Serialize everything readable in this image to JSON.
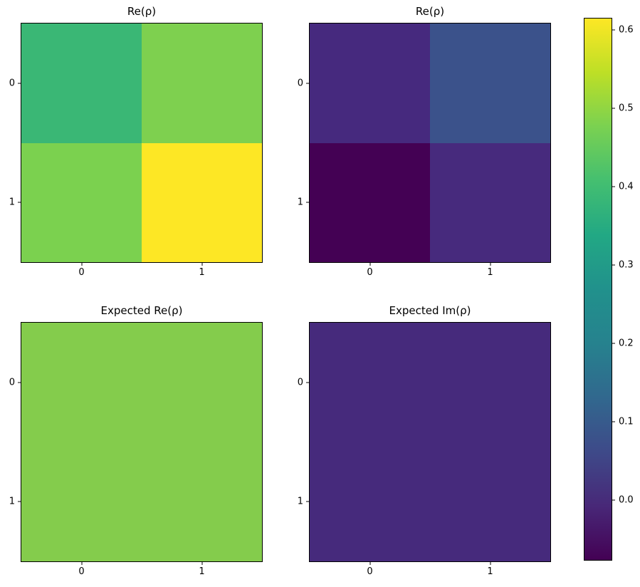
{
  "figure": {
    "background": "#ffffff",
    "text_color": "#000000"
  },
  "colormap": {
    "name": "viridis",
    "stops": [
      "#440154",
      "#482878",
      "#3e4a89",
      "#31688e",
      "#26828e",
      "#21918c",
      "#22a884",
      "#44bf70",
      "#7ad151",
      "#bddf26",
      "#fde725"
    ]
  },
  "chart_data": [
    {
      "type": "heatmap",
      "title": "Re(ρ)",
      "x_tick_labels": [
        "0",
        "1"
      ],
      "y_tick_labels": [
        "0",
        "1"
      ],
      "values": [
        [
          0.39,
          0.48
        ],
        [
          0.47,
          0.62
        ]
      ],
      "cell_colors": [
        [
          "#3ab775",
          "#7ed04f"
        ],
        [
          "#7bd14f",
          "#fde725"
        ]
      ]
    },
    {
      "type": "heatmap",
      "title": "Re(ρ)",
      "x_tick_labels": [
        "0",
        "1"
      ],
      "y_tick_labels": [
        "0",
        "1"
      ],
      "values": [
        [
          0.01,
          0.08
        ],
        [
          -0.08,
          0.01
        ]
      ],
      "cell_colors": [
        [
          "#46297e",
          "#3b528b"
        ],
        [
          "#440154",
          "#472a7d"
        ]
      ]
    },
    {
      "type": "heatmap",
      "title": "Expected Re(ρ)",
      "x_tick_labels": [
        "0",
        "1"
      ],
      "y_tick_labels": [
        "0",
        "1"
      ],
      "values": [
        [
          0.5,
          0.5
        ],
        [
          0.5,
          0.5
        ]
      ],
      "cell_colors": [
        [
          "#84cc4c",
          "#84cc4c"
        ],
        [
          "#84cc4c",
          "#84cc4c"
        ]
      ]
    },
    {
      "type": "heatmap",
      "title": "Expected Im(ρ)",
      "x_tick_labels": [
        "0",
        "1"
      ],
      "y_tick_labels": [
        "0",
        "1"
      ],
      "values": [
        [
          0.0,
          0.0
        ],
        [
          0.0,
          0.0
        ]
      ],
      "cell_colors": [
        [
          "#462a7c",
          "#462a7c"
        ],
        [
          "#462a7c",
          "#462a7c"
        ]
      ]
    }
  ],
  "colorbar": {
    "orientation": "vertical",
    "vmin": -0.076,
    "vmax": 0.615,
    "tick_values": [
      0.6,
      0.5,
      0.4,
      0.3,
      0.2,
      0.1,
      0.0
    ],
    "tick_labels": [
      "0.6",
      "0.5",
      "0.4",
      "0.3",
      "0.2",
      "0.1",
      "0.0"
    ]
  }
}
